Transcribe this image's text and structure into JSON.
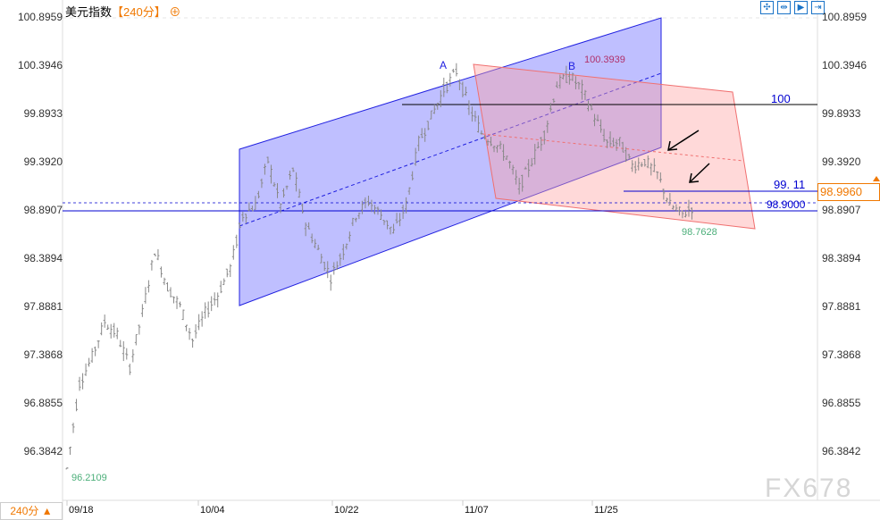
{
  "header": {
    "title": "美元指数",
    "period": "【240分】",
    "period_icon": "plus-circle-icon"
  },
  "toolbar": [
    {
      "icon": "crosshair-icon",
      "glyph": "✣"
    },
    {
      "icon": "fit-range-icon",
      "glyph": "⇹"
    },
    {
      "icon": "auto-scale-icon",
      "glyph": "▶"
    },
    {
      "icon": "scroll-end-icon",
      "glyph": "⇥"
    }
  ],
  "footer": {
    "period_button": "240分 ▲"
  },
  "watermark": "FX678",
  "colors": {
    "bars": "#888888",
    "channel_blue": "#8080ff",
    "channel_pink": "#ffa0a0",
    "accent": "#f07800",
    "low_label": "#4caf7a",
    "high_label": "#b0306a"
  },
  "chart_data": {
    "type": "ohlc",
    "y_ticks": [
      "100.8959",
      "100.3946",
      "99.8933",
      "99.3920",
      "98.8907",
      "98.3894",
      "97.8881",
      "97.3868",
      "96.8855",
      "96.3842"
    ],
    "x_ticks": [
      "09/18",
      "10/04",
      "10/22",
      "11/07",
      "11/25"
    ],
    "ylim": [
      96.0,
      100.96
    ],
    "closes": [
      96.21,
      97.1,
      97.37,
      97.74,
      97.6,
      97.27,
      97.83,
      98.48,
      98.1,
      97.9,
      97.55,
      97.83,
      98.02,
      98.3,
      98.85,
      98.95,
      99.41,
      98.95,
      99.32,
      98.76,
      98.48,
      98.2,
      98.48,
      98.85,
      98.99,
      98.85,
      98.67,
      98.95,
      99.6,
      99.87,
      100.15,
      100.34,
      99.97,
      99.7,
      99.6,
      99.46,
      99.13,
      99.41,
      99.69,
      100.2,
      100.3,
      100.15,
      99.87,
      99.6,
      99.6,
      99.36,
      99.41,
      99.27,
      98.95,
      98.85,
      98.95
    ],
    "current_price": "98.9960",
    "annotations": {
      "point_a": "A",
      "point_b": "B",
      "high": "100.3939",
      "low": "98.7628",
      "start_low": "96.2109",
      "level_100": "100",
      "level_9911": "99. 11",
      "level_989": "98.9000"
    },
    "levels": [
      100,
      99.11,
      98.9,
      98.996
    ]
  }
}
